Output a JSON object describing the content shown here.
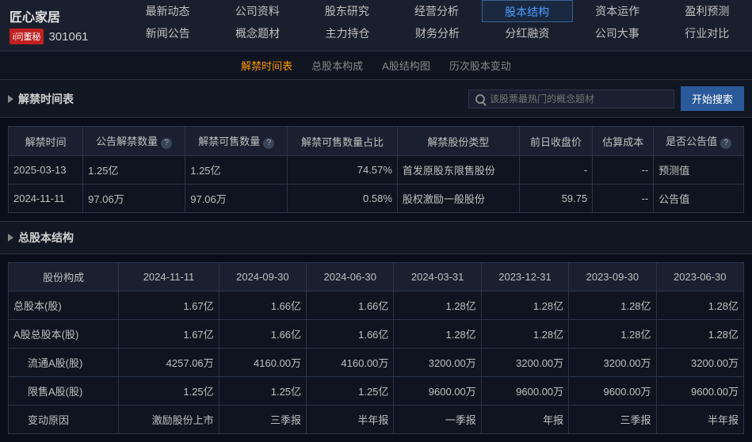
{
  "stock": {
    "name": "匠心家居",
    "badge": "i问董秘",
    "code": "301061"
  },
  "nav": {
    "row1": [
      "最新动态",
      "公司资料",
      "股东研究",
      "经营分析",
      "股本结构",
      "资本运作",
      "盈利预测"
    ],
    "row2": [
      "新闻公告",
      "概念题材",
      "主力持仓",
      "财务分析",
      "分红融资",
      "公司大事",
      "行业对比"
    ],
    "active": "股本结构"
  },
  "subtabs": {
    "items": [
      "解禁时间表",
      "总股本构成",
      "A股结构图",
      "历次股本变动"
    ],
    "active": "解禁时间表"
  },
  "search": {
    "placeholder": "该股票最热门的概念题材",
    "button": "开始搜索"
  },
  "unlock": {
    "title": "解禁时间表",
    "headers": [
      "解禁时间",
      "公告解禁数量",
      "解禁可售数量",
      "解禁可售数量占比",
      "解禁股份类型",
      "前日收盘价",
      "估算成本",
      "是否公告值"
    ],
    "rows": [
      {
        "date": "2025-03-13",
        "qty1": "1.25亿",
        "qty2": "1.25亿",
        "pct": "74.57%",
        "type": "首发原股东限售股份",
        "close": "-",
        "cost": "--",
        "pub": "预测值"
      },
      {
        "date": "2024-11-11",
        "qty1": "97.06万",
        "qty2": "97.06万",
        "pct": "0.58%",
        "type": "股权激励一般股份",
        "close": "59.75",
        "cost": "--",
        "pub": "公告值"
      }
    ]
  },
  "capital": {
    "title": "总股本结构",
    "col_header": "股份构成",
    "dates": [
      "2024-11-11",
      "2024-09-30",
      "2024-06-30",
      "2024-03-31",
      "2023-12-31",
      "2023-09-30",
      "2023-06-30"
    ],
    "rows": [
      {
        "label": "总股本(股)",
        "indent": false,
        "vals": [
          "1.67亿",
          "1.66亿",
          "1.66亿",
          "1.28亿",
          "1.28亿",
          "1.28亿",
          "1.28亿"
        ]
      },
      {
        "label": "A股总股本(股)",
        "indent": false,
        "vals": [
          "1.67亿",
          "1.66亿",
          "1.66亿",
          "1.28亿",
          "1.28亿",
          "1.28亿",
          "1.28亿"
        ]
      },
      {
        "label": "流通A股(股)",
        "indent": true,
        "vals": [
          "4257.06万",
          "4160.00万",
          "4160.00万",
          "3200.00万",
          "3200.00万",
          "3200.00万",
          "3200.00万"
        ]
      },
      {
        "label": "限售A股(股)",
        "indent": true,
        "vals": [
          "1.25亿",
          "1.25亿",
          "1.25亿",
          "9600.00万",
          "9600.00万",
          "9600.00万",
          "9600.00万"
        ]
      },
      {
        "label": "变动原因",
        "indent": true,
        "vals": [
          "激励股份上市",
          "三季报",
          "半年报",
          "一季报",
          "年报",
          "三季报",
          "半年报"
        ]
      }
    ]
  }
}
